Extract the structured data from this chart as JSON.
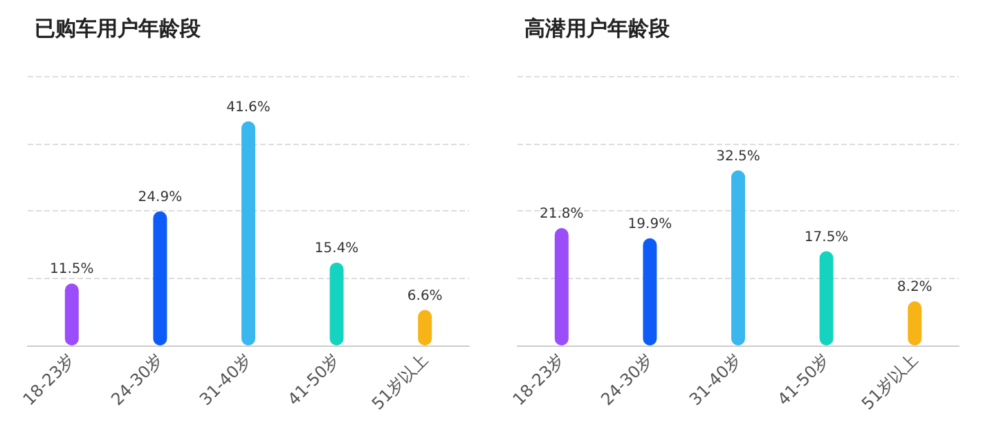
{
  "chart_data": [
    {
      "type": "bar",
      "title": "已购车用户年龄段",
      "categories": [
        "18-23岁",
        "24-30岁",
        "31-40岁",
        "41-50岁",
        "51岁以上"
      ],
      "values": [
        11.5,
        24.9,
        41.6,
        15.4,
        6.6
      ],
      "colors": [
        "#9b4dfa",
        "#0e5cf7",
        "#3ab7ef",
        "#14d4c0",
        "#f7b416"
      ],
      "value_labels": [
        "11.5%",
        "24.9%",
        "41.6%",
        "15.4%",
        "6.6%"
      ],
      "ylim": [
        0,
        50
      ],
      "yticks": [
        {
          "value": 0,
          "label": null
        },
        {
          "value": 12.5,
          "label": null
        },
        {
          "value": 25,
          "label": null
        },
        {
          "value": 37.5,
          "label": null
        },
        {
          "value": 50,
          "label": null
        }
      ],
      "grid": "y",
      "tick_labels": "x"
    },
    {
      "type": "bar",
      "title": "高潜用户年龄段",
      "categories": [
        "18-23岁",
        "24-30岁",
        "31-40岁",
        "41-50岁",
        "51岁以上"
      ],
      "values": [
        21.8,
        19.9,
        32.5,
        17.5,
        8.2
      ],
      "colors": [
        "#9b4dfa",
        "#0e5cf7",
        "#3ab7ef",
        "#14d4c0",
        "#f7b416"
      ],
      "value_labels": [
        "21.8%",
        "19.9%",
        "32.5%",
        "17.5%",
        "8.2%"
      ],
      "ylim": [
        0,
        50
      ],
      "yticks": [
        {
          "value": 0,
          "label": null
        },
        {
          "value": 12.5,
          "label": null
        },
        {
          "value": 25,
          "label": null
        },
        {
          "value": 37.5,
          "label": null
        },
        {
          "value": 50,
          "label": null
        }
      ],
      "grid": "y",
      "tick_labels": "x"
    }
  ]
}
